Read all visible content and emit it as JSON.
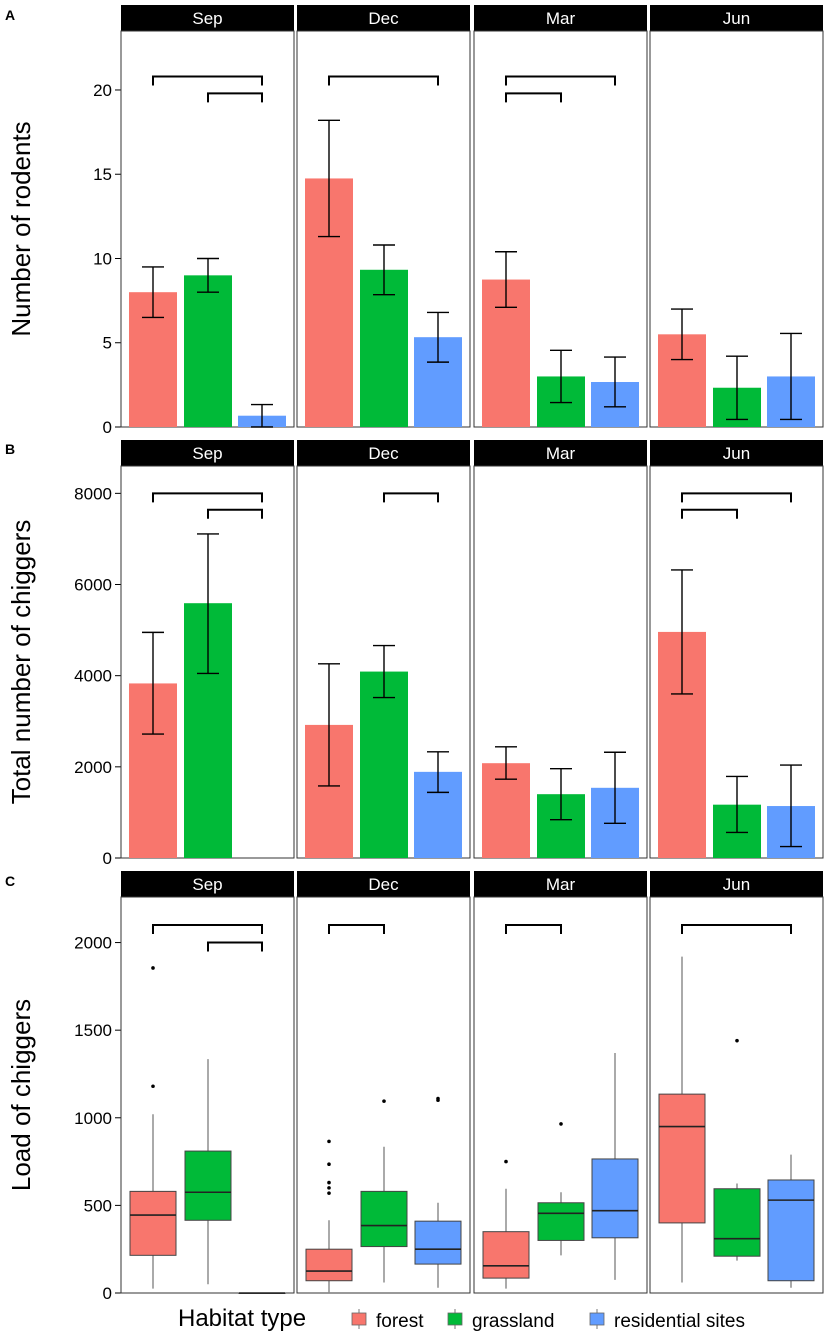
{
  "colors": {
    "forest": "#F8766D",
    "grassland": "#00BA38",
    "residential_sites": "#619CFF",
    "strip_background": "#000000"
  },
  "legend": {
    "title": "Habitat type",
    "entries": [
      "forest",
      "grassland",
      "residential sites"
    ]
  },
  "chart_data": [
    {
      "tag": "A",
      "type": "bar",
      "ylabel": "Number of rodents",
      "ylim": [
        0,
        23.5
      ],
      "yticks": [
        0,
        5,
        10,
        15,
        20
      ],
      "panels": [
        {
          "label": "Sep",
          "series": [
            {
              "name": "forest",
              "value": 8.0,
              "err": [
                6.5,
                9.5
              ]
            },
            {
              "name": "grassland",
              "value": 9.0,
              "err": [
                8.0,
                10.0
              ]
            },
            {
              "name": "residential sites",
              "value": 0.67,
              "err": [
                0.0,
                1.33
              ]
            }
          ],
          "brackets": [
            [
              1,
              3,
              20.8
            ],
            [
              2,
              3,
              19.8
            ]
          ]
        },
        {
          "label": "Dec",
          "series": [
            {
              "name": "forest",
              "value": 14.75,
              "err": [
                11.3,
                18.2
              ]
            },
            {
              "name": "grassland",
              "value": 9.33,
              "err": [
                7.85,
                10.8
              ]
            },
            {
              "name": "residential sites",
              "value": 5.33,
              "err": [
                3.85,
                6.8
              ]
            }
          ],
          "brackets": [
            [
              1,
              3,
              20.8
            ]
          ]
        },
        {
          "label": "Mar",
          "series": [
            {
              "name": "forest",
              "value": 8.75,
              "err": [
                7.1,
                10.4
              ]
            },
            {
              "name": "grassland",
              "value": 3.0,
              "err": [
                1.45,
                4.55
              ]
            },
            {
              "name": "residential sites",
              "value": 2.67,
              "err": [
                1.2,
                4.15
              ]
            }
          ],
          "brackets": [
            [
              1,
              3,
              20.8
            ],
            [
              1,
              2,
              19.8
            ]
          ]
        },
        {
          "label": "Jun",
          "series": [
            {
              "name": "forest",
              "value": 5.5,
              "err": [
                4.0,
                7.0
              ]
            },
            {
              "name": "grassland",
              "value": 2.33,
              "err": [
                0.45,
                4.2
              ]
            },
            {
              "name": "residential sites",
              "value": 3.0,
              "err": [
                0.45,
                5.55
              ]
            }
          ],
          "brackets": []
        }
      ]
    },
    {
      "tag": "B",
      "type": "bar",
      "ylabel": "Total number of  chiggers",
      "ylim": [
        0,
        8600
      ],
      "yticks": [
        0,
        2000,
        4000,
        6000,
        8000
      ],
      "panels": [
        {
          "label": "Sep",
          "series": [
            {
              "name": "forest",
              "value": 3830,
              "err": [
                2720,
                4950
              ]
            },
            {
              "name": "grassland",
              "value": 5590,
              "err": [
                4050,
                7110
              ]
            },
            {
              "name": "residential sites",
              "value": 0,
              "err": [
                0,
                0
              ]
            }
          ],
          "brackets": [
            [
              1,
              3,
              8000
            ],
            [
              2,
              3,
              7640
            ]
          ]
        },
        {
          "label": "Dec",
          "series": [
            {
              "name": "forest",
              "value": 2920,
              "err": [
                1580,
                4260
              ]
            },
            {
              "name": "grassland",
              "value": 4090,
              "err": [
                3520,
                4660
              ]
            },
            {
              "name": "residential sites",
              "value": 1890,
              "err": [
                1440,
                2330
              ]
            }
          ],
          "brackets": [
            [
              2,
              3,
              8000
            ]
          ]
        },
        {
          "label": "Mar",
          "series": [
            {
              "name": "forest",
              "value": 2080,
              "err": [
                1730,
                2440
              ]
            },
            {
              "name": "grassland",
              "value": 1400,
              "err": [
                840,
                1960
              ]
            },
            {
              "name": "residential sites",
              "value": 1540,
              "err": [
                760,
                2320
              ]
            }
          ],
          "brackets": []
        },
        {
          "label": "Jun",
          "series": [
            {
              "name": "forest",
              "value": 4960,
              "err": [
                3600,
                6320
              ]
            },
            {
              "name": "grassland",
              "value": 1170,
              "err": [
                560,
                1790
              ]
            },
            {
              "name": "residential sites",
              "value": 1140,
              "err": [
                250,
                2040
              ]
            }
          ],
          "brackets": [
            [
              1,
              3,
              8000
            ],
            [
              1,
              2,
              7640
            ]
          ]
        }
      ]
    },
    {
      "tag": "C",
      "type": "box",
      "ylabel": "Load of chiggers",
      "ylim": [
        0,
        2260
      ],
      "yticks": [
        0,
        500,
        1000,
        1500,
        2000
      ],
      "panels": [
        {
          "label": "Sep",
          "series": [
            {
              "name": "forest",
              "whisker_low": 25,
              "q1": 215,
              "median": 445,
              "q3": 580,
              "whisker_high": 1020,
              "outliers": [
                1180,
                1855
              ]
            },
            {
              "name": "grassland",
              "whisker_low": 50,
              "q1": 415,
              "median": 575,
              "q3": 810,
              "whisker_high": 1335,
              "outliers": []
            },
            {
              "name": "residential sites",
              "whisker_low": 0,
              "q1": 0,
              "median": 0,
              "q3": 0,
              "whisker_high": 0,
              "outliers": []
            }
          ],
          "brackets": [
            [
              1,
              3,
              2100
            ],
            [
              2,
              3,
              2000
            ]
          ]
        },
        {
          "label": "Dec",
          "series": [
            {
              "name": "forest",
              "whisker_low": 5,
              "q1": 70,
              "median": 125,
              "q3": 250,
              "whisker_high": 415,
              "outliers": [
                570,
                600,
                630,
                735,
                865
              ]
            },
            {
              "name": "grassland",
              "whisker_low": 60,
              "q1": 265,
              "median": 385,
              "q3": 580,
              "whisker_high": 835,
              "outliers": [
                1095
              ]
            },
            {
              "name": "residential sites",
              "whisker_low": 30,
              "q1": 165,
              "median": 250,
              "q3": 410,
              "whisker_high": 515,
              "outliers": [
                1100,
                1110
              ]
            }
          ],
          "brackets": [
            [
              1,
              2,
              2100
            ]
          ]
        },
        {
          "label": "Mar",
          "series": [
            {
              "name": "forest",
              "whisker_low": 25,
              "q1": 85,
              "median": 155,
              "q3": 350,
              "whisker_high": 595,
              "outliers": [
                750
              ]
            },
            {
              "name": "grassland",
              "whisker_low": 215,
              "q1": 300,
              "median": 455,
              "q3": 515,
              "whisker_high": 575,
              "outliers": [
                965
              ]
            },
            {
              "name": "residential sites",
              "whisker_low": 75,
              "q1": 315,
              "median": 470,
              "q3": 765,
              "whisker_high": 1370,
              "outliers": []
            }
          ],
          "brackets": [
            [
              1,
              2,
              2100
            ]
          ]
        },
        {
          "label": "Jun",
          "series": [
            {
              "name": "forest",
              "whisker_low": 60,
              "q1": 400,
              "median": 950,
              "q3": 1135,
              "whisker_high": 1920,
              "outliers": []
            },
            {
              "name": "grassland",
              "whisker_low": 185,
              "q1": 210,
              "median": 310,
              "q3": 595,
              "whisker_high": 625,
              "outliers": [
                1440
              ]
            },
            {
              "name": "residential sites",
              "whisker_low": 30,
              "q1": 70,
              "median": 530,
              "q3": 645,
              "whisker_high": 790,
              "outliers": []
            }
          ],
          "brackets": [
            [
              1,
              3,
              2100
            ]
          ]
        }
      ]
    }
  ]
}
